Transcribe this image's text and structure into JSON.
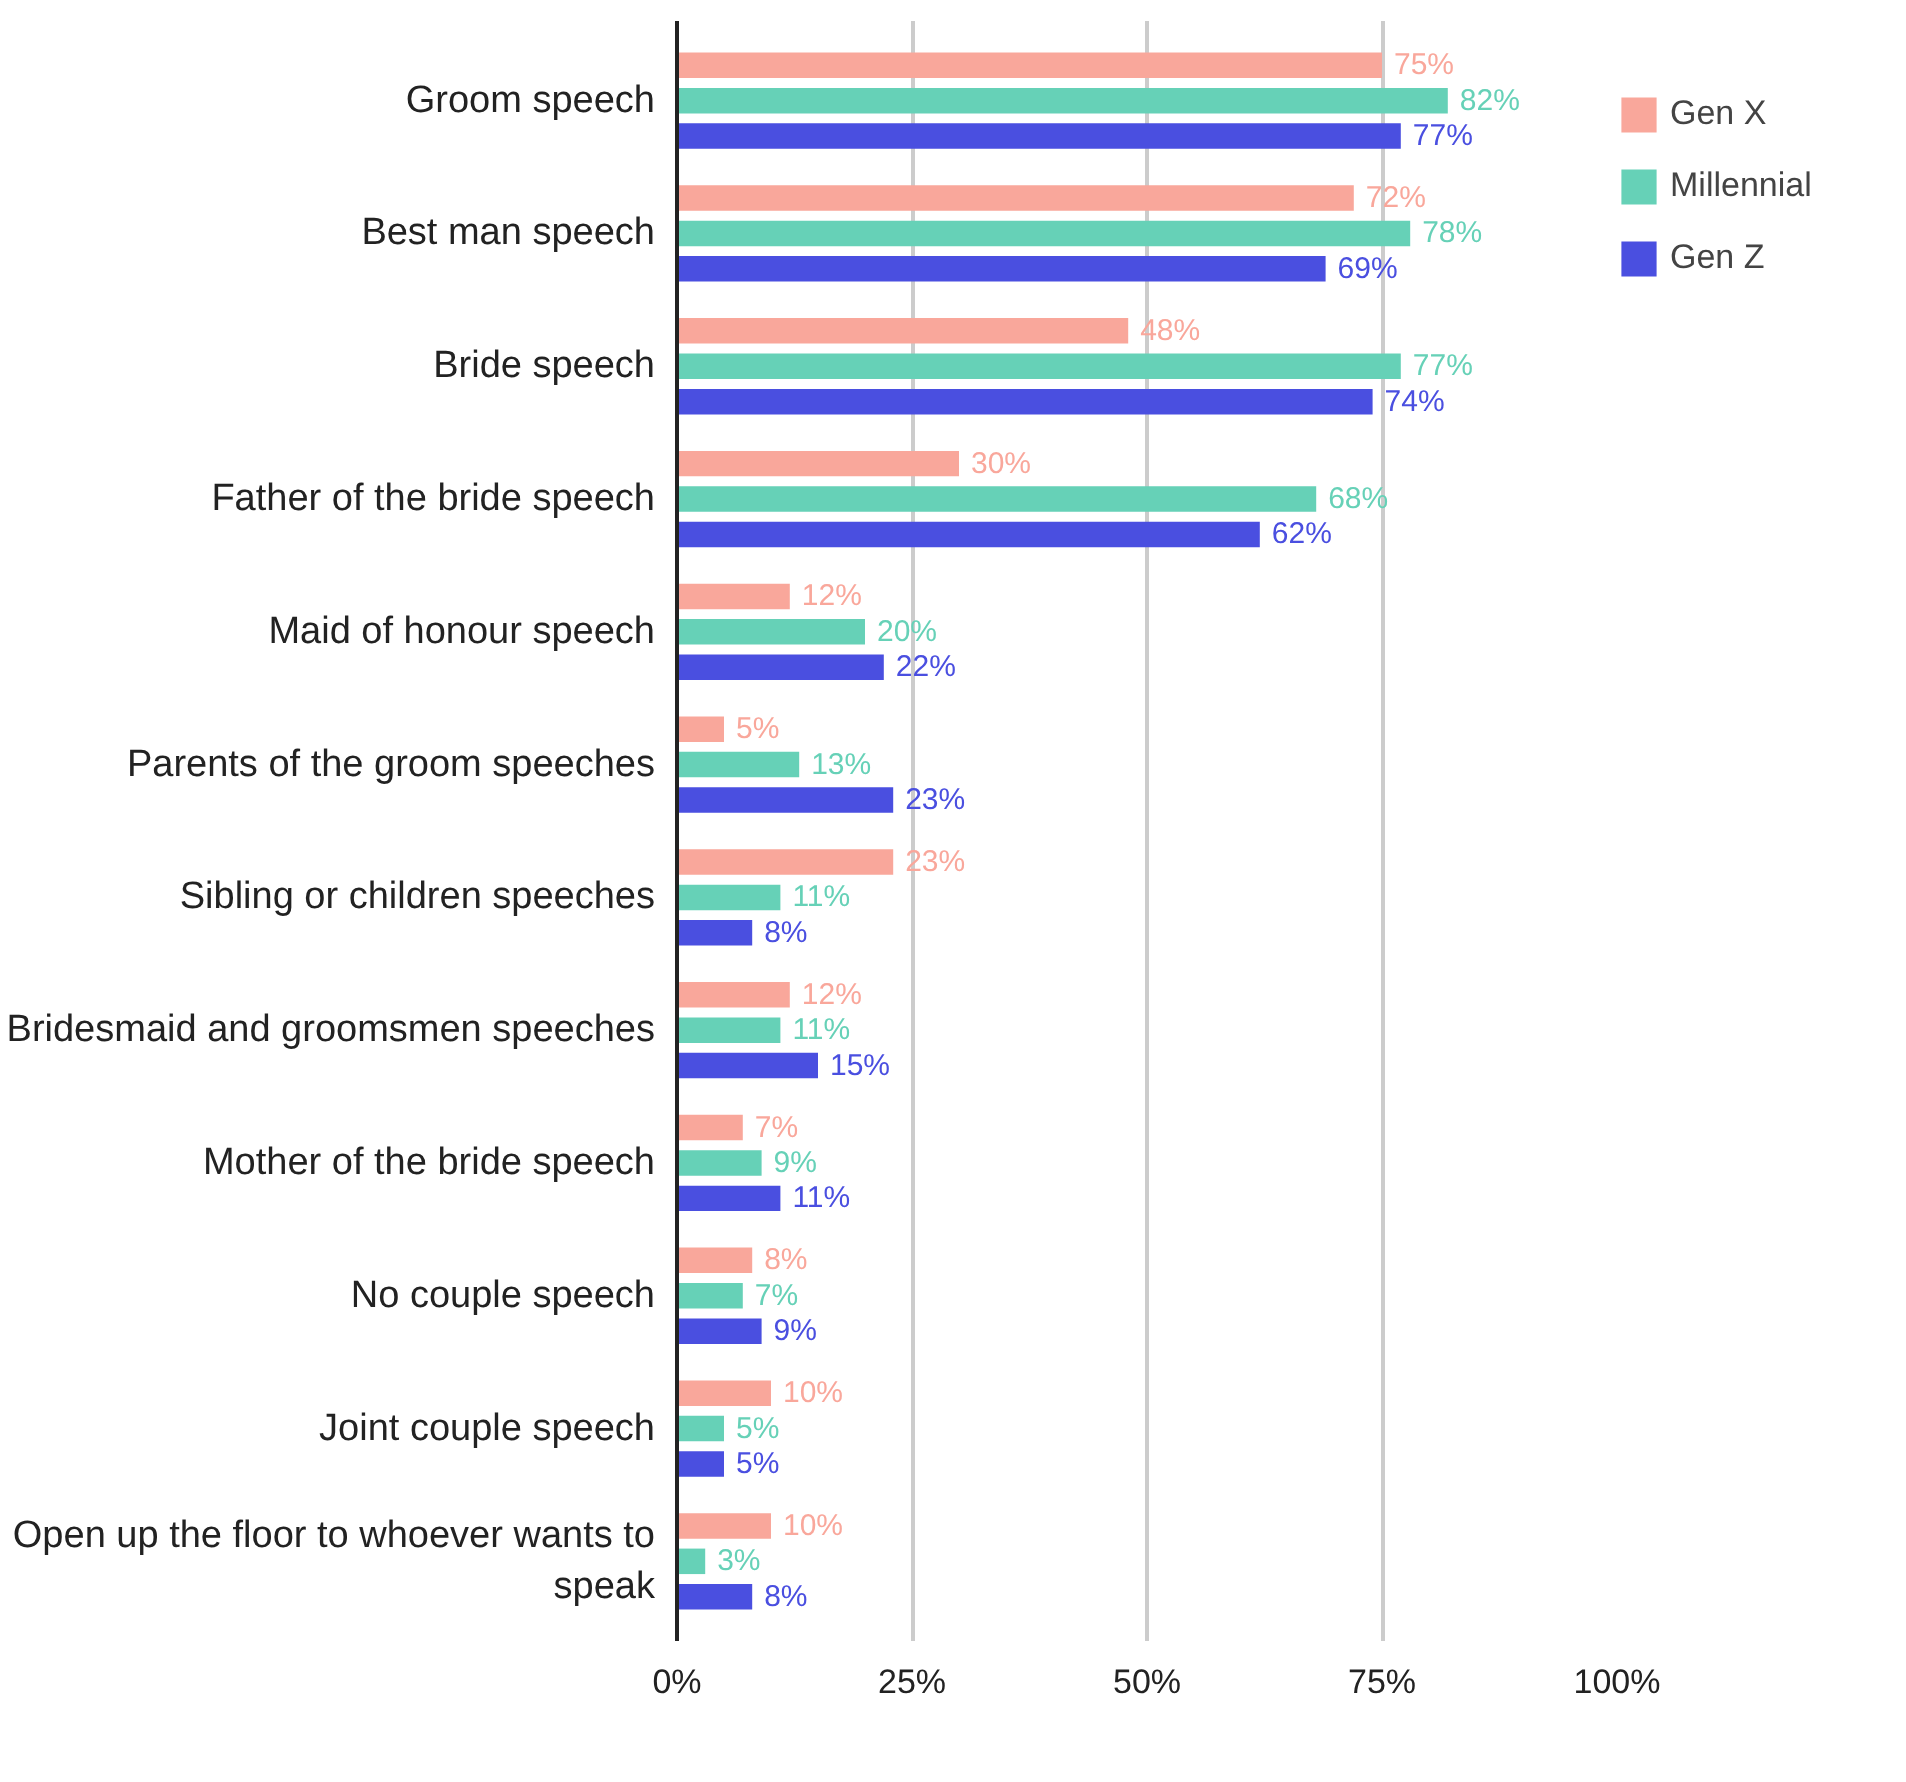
{
  "chart_data": {
    "type": "bar",
    "orientation": "horizontal",
    "categories": [
      "Groom speech",
      "Best man speech",
      "Bride speech",
      "Father of the bride speech",
      "Maid of honour speech",
      "Parents of the groom speeches",
      "Sibling or children speeches",
      "Bridesmaid and groomsmen speeches",
      "Mother of the bride speech",
      "No couple speech",
      "Joint couple speech",
      "Open up the floor to whoever wants to speak"
    ],
    "series": [
      {
        "name": "Gen X",
        "color": "#f9a79b",
        "values": [
          75,
          72,
          48,
          30,
          12,
          5,
          23,
          12,
          7,
          8,
          10,
          10
        ],
        "value_labels": [
          "75%",
          "72%",
          "48%",
          "30%",
          "12%",
          "5%",
          "23%",
          "12%",
          "7%",
          "8%",
          "10%",
          "10%"
        ]
      },
      {
        "name": "Millennial",
        "color": "#66d1b7",
        "values": [
          82,
          78,
          77,
          68,
          20,
          13,
          11,
          11,
          9,
          7,
          5,
          3
        ],
        "value_labels": [
          "82%",
          "78%",
          "77%",
          "68%",
          "20%",
          "13%",
          "11%",
          "11%",
          "9%",
          "7%",
          "5%",
          "3%"
        ]
      },
      {
        "name": "Gen Z",
        "color": "#4a4fe0",
        "values": [
          77,
          69,
          74,
          62,
          22,
          23,
          8,
          15,
          11,
          9,
          5,
          8
        ],
        "value_labels": [
          "77%",
          "69%",
          "74%",
          "62%",
          "22%",
          "23%",
          "8%",
          "15%",
          "11%",
          "9%",
          "5%",
          "8%"
        ]
      }
    ],
    "xlim": [
      0,
      100
    ],
    "xticks": [
      {
        "value": 0,
        "label": "0%"
      },
      {
        "value": 25,
        "label": "25%"
      },
      {
        "value": 50,
        "label": "50%"
      },
      {
        "value": 75,
        "label": "75%"
      },
      {
        "value": 100,
        "label": "100%"
      }
    ],
    "grid": "x",
    "legend": "top right"
  }
}
